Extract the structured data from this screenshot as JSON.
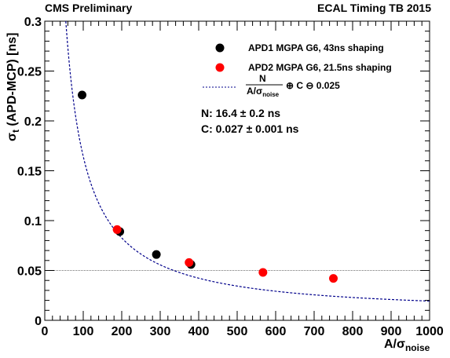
{
  "header": {
    "left": "CMS Preliminary",
    "right": "ECAL Timing TB 2015"
  },
  "fit_results": {
    "n_line": "N: 16.4 ± 0.2 ns",
    "c_line": "C: 0.027 ± 0.001 ns"
  },
  "legend": {
    "entries": [
      {
        "label": "APD1 MGPA G6, 43ns shaping",
        "color": "#000000"
      },
      {
        "label": "APD2 MGPA G6, 21.5ns shaping",
        "color": "#ff0000"
      }
    ],
    "fit": {
      "numerator": "N",
      "denom_main": "A/σ",
      "denom_sub": "noise",
      "suffix": "⊕ C ⊖ 0.025",
      "color": "#00008b"
    }
  },
  "chart_data": {
    "type": "scatter",
    "xlabel_main": "A/σ",
    "xlabel_sub": "noise",
    "ylabel_main": "σ",
    "ylabel_sub": "t",
    "ylabel_rest": " (APD-MCP) [ns]",
    "xlim": [
      0,
      1000
    ],
    "ylim": [
      0,
      0.3
    ],
    "xticks": [
      "0",
      "100",
      "200",
      "300",
      "400",
      "500",
      "600",
      "700",
      "800",
      "900",
      "1000"
    ],
    "yticks": [
      "0",
      "0.05",
      "0.1",
      "0.15",
      "0.2",
      "0.25",
      "0.3"
    ],
    "series": [
      {
        "name": "APD1 MGPA G6, 43ns shaping",
        "color": "#000000",
        "x": [
          97,
          195,
          290,
          380
        ],
        "y": [
          0.226,
          0.089,
          0.066,
          0.056
        ]
      },
      {
        "name": "APD2 MGPA G6, 21.5ns shaping",
        "color": "#ff0000",
        "x": [
          188,
          375,
          567,
          750
        ],
        "y": [
          0.091,
          0.058,
          0.048,
          0.042
        ]
      }
    ],
    "fit": {
      "N": 16.4,
      "C": 0.027,
      "subtract": 0.025,
      "color": "#00008b"
    },
    "reference_line": {
      "y": 0.05
    },
    "grid": false
  }
}
